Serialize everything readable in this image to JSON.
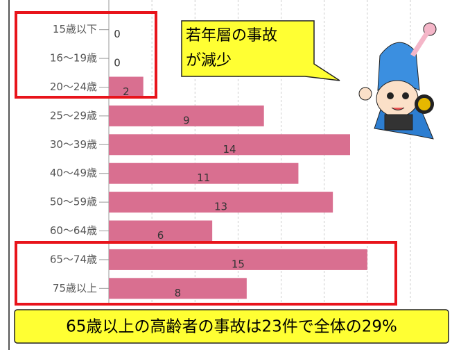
{
  "chart_data": {
    "type": "hbar",
    "categories": [
      "15歳以下",
      "16～19歳",
      "20～24歳",
      "25～29歳",
      "30～39歳",
      "40～49歳",
      "50～59歳",
      "60～64歳",
      "65～74歳",
      "75歳以上"
    ],
    "values": [
      0,
      0,
      2,
      9,
      14,
      11,
      13,
      6,
      15,
      8
    ],
    "color": "#d96f90",
    "xlim": [
      0,
      17.5
    ],
    "xticks": [
      0,
      2.5,
      5,
      7.5,
      10,
      12.5,
      15,
      17.5
    ],
    "grid": true,
    "annotations": {
      "bubble": [
        "若年層の事故",
        "が減少"
      ],
      "footer": "65歳以上の高齢者の事故は23件で全体の29%"
    }
  }
}
